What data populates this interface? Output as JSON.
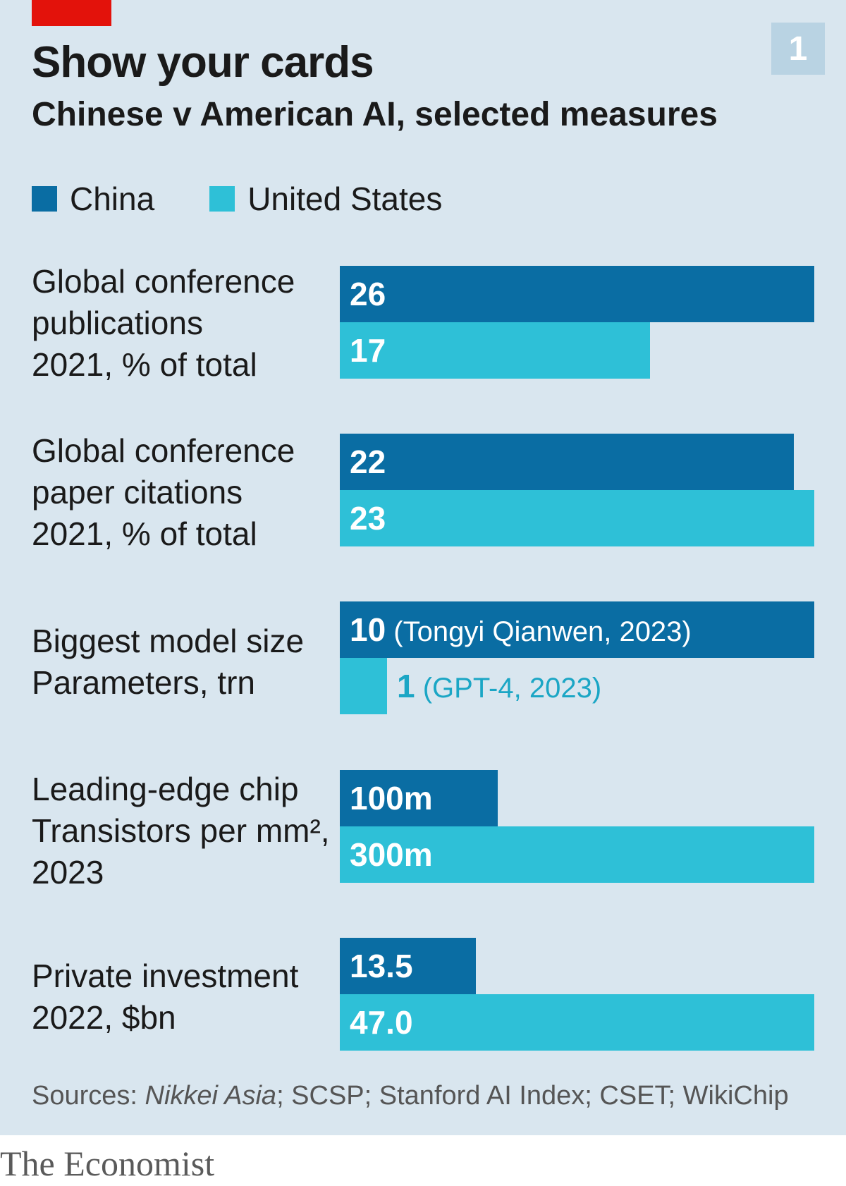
{
  "header": {
    "title": "Show your cards",
    "subtitle": "Chinese v American AI, selected measures",
    "chart_number": "1",
    "tag_color": "#e3120b"
  },
  "colors": {
    "china": "#0a6da3",
    "united_states": "#2ec0d7",
    "background": "#d9e6ef"
  },
  "chart_data": {
    "type": "bar",
    "orientation": "horizontal",
    "title": "Show your cards",
    "subtitle": "Chinese v American AI, selected measures",
    "legend": [
      "China",
      "United States"
    ],
    "legend_position": "top-left",
    "grid": false,
    "groups": [
      {
        "label": "Global conference publications",
        "sublabel": "2021, % of total",
        "max": 26,
        "values": [
          {
            "series": "China",
            "value": 26,
            "label": "26",
            "note": ""
          },
          {
            "series": "United States",
            "value": 17,
            "label": "17",
            "note": ""
          }
        ]
      },
      {
        "label": "Global conference paper citations",
        "sublabel": "2021, % of total",
        "max": 23,
        "values": [
          {
            "series": "China",
            "value": 22,
            "label": "22",
            "note": ""
          },
          {
            "series": "United States",
            "value": 23,
            "label": "23",
            "note": ""
          }
        ]
      },
      {
        "label": "Biggest model size",
        "sublabel": "Parameters, trn",
        "max": 10,
        "values": [
          {
            "series": "China",
            "value": 10,
            "label": "10",
            "note": "(Tongyi Qianwen, 2023)"
          },
          {
            "series": "United States",
            "value": 1,
            "label": "1",
            "note": "(GPT-4, 2023)"
          }
        ]
      },
      {
        "label": "Leading-edge chip",
        "sublabel": "Transistors per mm², 2023",
        "max": 300,
        "values": [
          {
            "series": "China",
            "value": 100,
            "label": "100m",
            "note": ""
          },
          {
            "series": "United States",
            "value": 300,
            "label": "300m",
            "note": ""
          }
        ]
      },
      {
        "label": "Private investment",
        "sublabel": "2022, $bn",
        "max": 47,
        "values": [
          {
            "series": "China",
            "value": 13.5,
            "label": "13.5",
            "note": ""
          },
          {
            "series": "United States",
            "value": 47.0,
            "label": "47.0",
            "note": ""
          }
        ]
      }
    ]
  },
  "footer": {
    "source_prefix": "Sources: ",
    "source_italic": "Nikkei Asia",
    "source_rest": "; SCSP; Stanford AI Index; CSET; WikiChip",
    "brand": "The Economist"
  }
}
